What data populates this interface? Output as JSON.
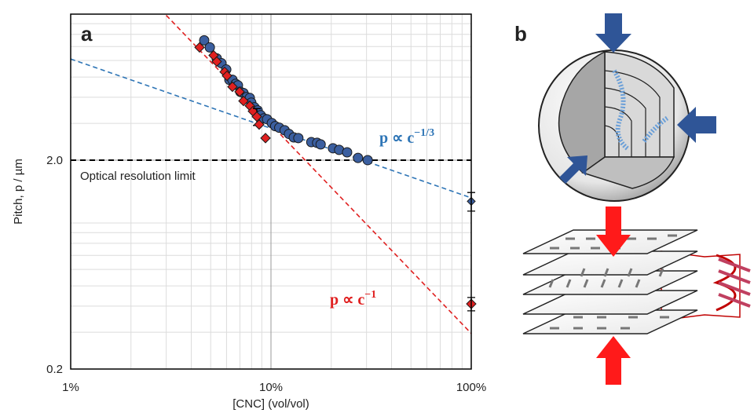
{
  "chart_data": {
    "type": "scatter",
    "panel_labels": [
      "a",
      "b"
    ],
    "xlabel": "[CNC] (vol/vol)",
    "ylabel": "Pitch, p / µm",
    "xscale": "log",
    "yscale": "log",
    "grid": true,
    "minor_grid": true,
    "xlim": [
      1,
      100
    ],
    "xticks": [
      {
        "value": 1,
        "label": "1%"
      },
      {
        "value": 10,
        "label": "10%"
      },
      {
        "value": 100,
        "label": "100%"
      }
    ],
    "ylim": [
      0.2,
      10
    ],
    "yticks": [
      0.2,
      {
        "value": 2,
        "label": "2.0"
      }
    ],
    "series": [
      {
        "color": "#3b5fa0",
        "marker": "circle",
        "x": [
          4.64,
          4.95,
          5.36,
          5.66,
          5.98,
          6.2,
          6.42,
          6.66,
          6.84,
          7.03,
          7.29,
          7.56,
          7.84,
          7.98,
          8.27,
          8.58,
          8.89,
          9.22,
          9.56,
          10.1,
          10.5,
          11.0,
          11.7,
          12.3,
          13.0,
          13.7,
          15.9,
          17.0,
          17.7,
          20.4,
          21.9,
          24.0,
          27.2,
          30.4,
          100
        ],
        "values": [
          7.49,
          6.93,
          6.14,
          5.82,
          5.43,
          4.85,
          4.85,
          4.64,
          4.56,
          4.25,
          4.19,
          4.01,
          3.97,
          3.77,
          3.58,
          3.46,
          3.28,
          3.17,
          3.14,
          3.01,
          2.91,
          2.86,
          2.78,
          2.67,
          2.57,
          2.55,
          2.44,
          2.42,
          2.38,
          2.28,
          2.24,
          2.18,
          2.05,
          2.0,
          1.27
        ],
        "errors": [
          null,
          null,
          null,
          null,
          null,
          null,
          null,
          null,
          null,
          null,
          null,
          null,
          null,
          null,
          null,
          null,
          null,
          null,
          null,
          null,
          null,
          null,
          null,
          null,
          null,
          null,
          null,
          null,
          null,
          null,
          null,
          null,
          null,
          null,
          0.13
        ]
      },
      {
        "color": "#e02020",
        "marker": "diamond",
        "x": [
          4.4,
          5.17,
          5.36,
          5.87,
          6.03,
          6.42,
          6.97,
          7.29,
          7.84,
          8.12,
          8.5,
          8.73,
          9.39,
          100
        ],
        "values": [
          6.93,
          6.35,
          5.93,
          5.29,
          5.07,
          4.49,
          4.25,
          3.84,
          3.64,
          3.43,
          3.23,
          2.96,
          2.55,
          0.41
        ],
        "errors": [
          null,
          null,
          null,
          null,
          null,
          null,
          null,
          null,
          null,
          null,
          0.3,
          null,
          null,
          0.03
        ]
      }
    ],
    "fits": [
      {
        "color": "#2e75b6",
        "x": [
          1,
          100
        ],
        "values": [
          6.1,
          1.32
        ],
        "label": {
          "base": "p ∝ c",
          "exponent": "−1/3"
        }
      },
      {
        "color": "#e02020",
        "x": [
          3,
          100
        ],
        "values": [
          9.87,
          0.296
        ],
        "label": {
          "base": "p ∝ c",
          "exponent": "−1"
        }
      }
    ],
    "reference_line": {
      "value": 2,
      "label": "Optical resolution limit",
      "color": "#000000"
    }
  }
}
